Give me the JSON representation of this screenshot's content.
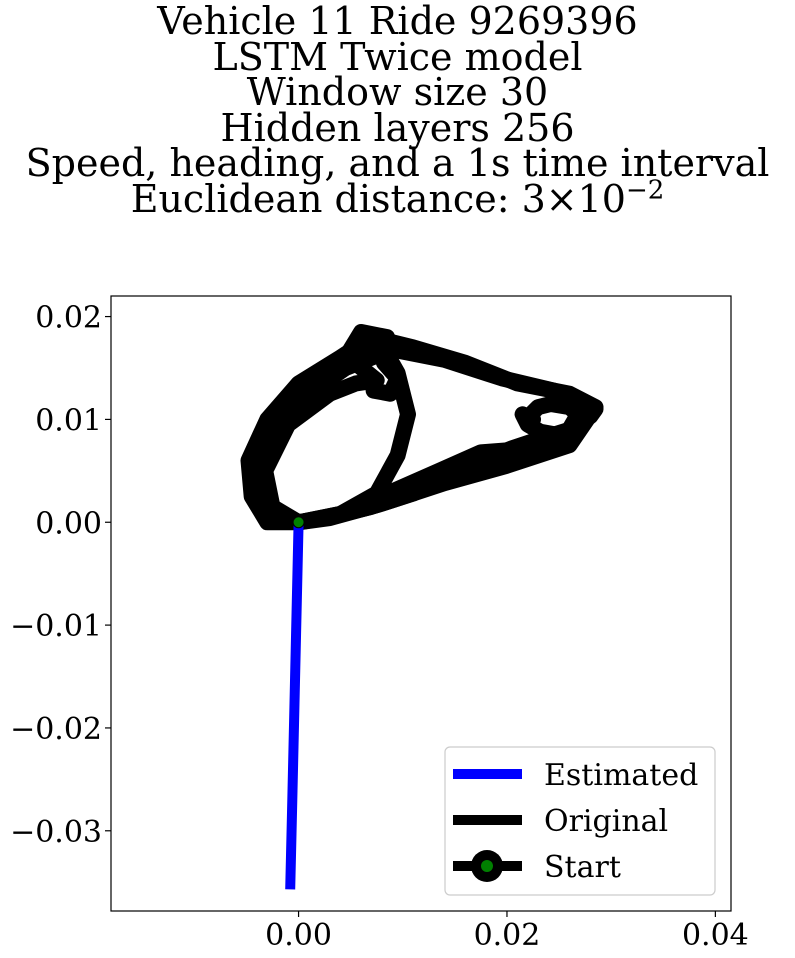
{
  "title": {
    "line1": "Vehicle 11 Ride 9269396",
    "line2": "LSTM Twice model",
    "line3": "Window size 30",
    "line4": "Hidden layers 256",
    "line5": "Speed, heading, and a 1s time interval",
    "line6_prefix": "Euclidean distance: 3×10",
    "line6_exponent": "−2"
  },
  "chart_data": {
    "type": "line",
    "title": "Vehicle 11 Ride 9269396 / LSTM Twice model / Window size 30 / Hidden layers 256 / Speed, heading, and a 1s time interval / Euclidean distance: 3×10^-2",
    "xlabel": "",
    "ylabel": "",
    "xlim": [
      -0.018,
      0.0415
    ],
    "ylim": [
      -0.0378,
      0.022
    ],
    "grid": false,
    "legend_position": "lower-right",
    "x_ticks": [
      0.0,
      0.02,
      0.04
    ],
    "x_tick_labels": [
      "0.00",
      "0.02",
      "0.04"
    ],
    "y_ticks": [
      0.02,
      0.01,
      0.0,
      -0.01,
      -0.02,
      -0.03
    ],
    "y_tick_labels": [
      "0.02",
      "0.01",
      "0.00",
      "−0.01",
      "−0.02",
      "−0.03"
    ],
    "series": [
      {
        "name": "Estimated",
        "color": "#0000ff",
        "points": [
          [
            0.0,
            0.0
          ],
          [
            -0.0002,
            -0.009
          ],
          [
            -0.0004,
            -0.018
          ],
          [
            -0.0006,
            -0.027
          ],
          [
            -0.0008,
            -0.0357
          ]
        ]
      },
      {
        "name": "Original",
        "color": "#000000",
        "loops": [
          [
            [
              0.0,
              0.0
            ],
            [
              -0.003,
              0.0
            ],
            [
              -0.0045,
              0.0025
            ],
            [
              -0.0048,
              0.006
            ],
            [
              -0.003,
              0.01
            ],
            [
              0.0,
              0.0135
            ],
            [
              0.004,
              0.016
            ],
            [
              0.007,
              0.018
            ],
            [
              0.011,
              0.017
            ],
            [
              0.016,
              0.0155
            ],
            [
              0.021,
              0.0135
            ],
            [
              0.026,
              0.0125
            ],
            [
              0.0285,
              0.0112
            ],
            [
              0.026,
              0.0075
            ],
            [
              0.02,
              0.0055
            ],
            [
              0.014,
              0.0038
            ],
            [
              0.008,
              0.0018
            ],
            [
              0.003,
              0.0004
            ],
            [
              0.0,
              0.0
            ]
          ],
          [
            [
              0.0,
              0.0
            ],
            [
              -0.0035,
              0.001
            ],
            [
              -0.0042,
              0.005
            ],
            [
              -0.002,
              0.0095
            ],
            [
              0.002,
              0.0138
            ],
            [
              0.0055,
              0.0165
            ],
            [
              0.008,
              0.0172
            ],
            [
              0.0095,
              0.0145
            ],
            [
              0.0105,
              0.0105
            ],
            [
              0.0095,
              0.0065
            ],
            [
              0.0075,
              0.0028
            ],
            [
              0.004,
              0.0008
            ],
            [
              0.0,
              0.0
            ]
          ],
          [
            [
              0.0,
              0.0
            ],
            [
              -0.003,
              0.0005
            ],
            [
              -0.004,
              0.004
            ],
            [
              -0.0028,
              0.0085
            ],
            [
              0.0005,
              0.0122
            ],
            [
              0.0045,
              0.015
            ],
            [
              0.009,
              0.0168
            ],
            [
              0.014,
              0.0158
            ],
            [
              0.0195,
              0.014
            ],
            [
              0.0245,
              0.0128
            ],
            [
              0.027,
              0.0108
            ],
            [
              0.0255,
              0.0082
            ],
            [
              0.02,
              0.007
            ],
            [
              0.0175,
              0.0068
            ],
            [
              0.0135,
              0.005
            ],
            [
              0.009,
              0.003
            ],
            [
              0.004,
              0.0008
            ],
            [
              0.0,
              0.0
            ]
          ],
          [
            [
              0.0,
              0.0
            ],
            [
              -0.0025,
              0.0015
            ],
            [
              -0.0032,
              0.005
            ],
            [
              -0.001,
              0.0095
            ],
            [
              0.003,
              0.0125
            ],
            [
              0.0055,
              0.0135
            ],
            [
              0.0075,
              0.0138
            ],
            [
              0.0058,
              0.0152
            ],
            [
              0.0045,
              0.016
            ],
            [
              0.006,
              0.0185
            ],
            [
              0.0085,
              0.018
            ],
            [
              0.0082,
              0.0155
            ],
            [
              0.0095,
              0.014
            ],
            [
              0.0088,
              0.0125
            ],
            [
              0.0072,
              0.0128
            ]
          ],
          [
            [
              0.0225,
              0.01
            ],
            [
              0.0215,
              0.0105
            ],
            [
              0.022,
              0.0095
            ],
            [
              0.0232,
              0.0088
            ],
            [
              0.0248,
              0.0085
            ],
            [
              0.026,
              0.009
            ],
            [
              0.027,
              0.0103
            ],
            [
              0.026,
              0.0112
            ],
            [
              0.0242,
              0.0115
            ],
            [
              0.023,
              0.0112
            ],
            [
              0.0222,
              0.0104
            ]
          ],
          [
            [
              0.0,
              0.0
            ],
            [
              0.003,
              0.0005
            ],
            [
              0.007,
              0.0015
            ],
            [
              0.011,
              0.0028
            ],
            [
              0.0145,
              0.0045
            ],
            [
              0.0165,
              0.0055
            ],
            [
              0.018,
              0.0062
            ],
            [
              0.0205,
              0.0072
            ],
            [
              0.0235,
              0.0082
            ],
            [
              0.026,
              0.009
            ],
            [
              0.028,
              0.0103
            ],
            [
              0.0285,
              0.011
            ]
          ]
        ]
      },
      {
        "name": "Start",
        "marker_color": "#008000",
        "marker_edge": "#000000",
        "points": [
          [
            0.0,
            0.0
          ]
        ]
      }
    ],
    "legend": [
      "Estimated",
      "Original",
      "Start"
    ]
  }
}
